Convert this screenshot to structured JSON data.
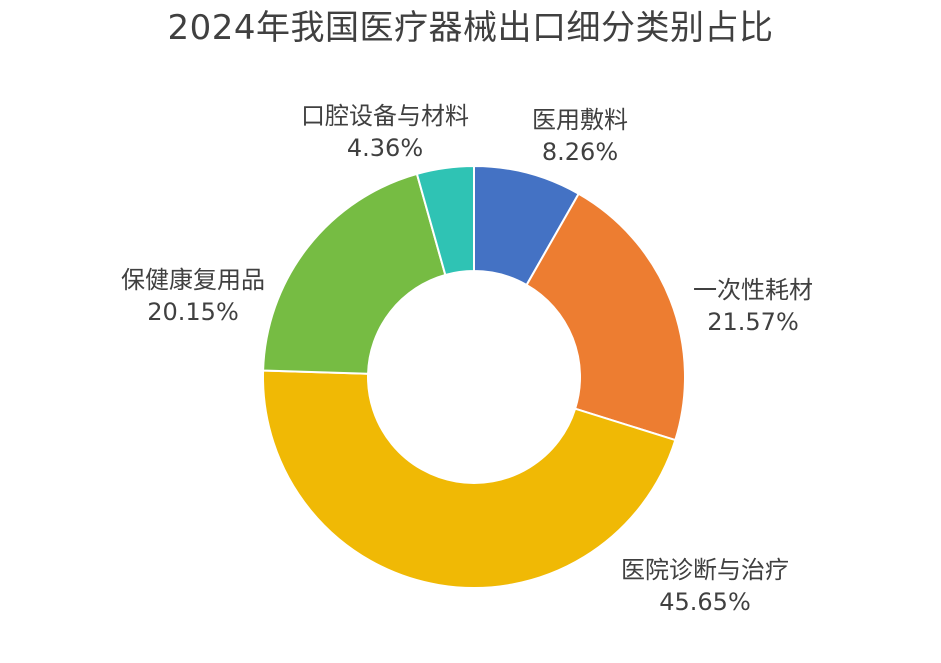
{
  "chart_data": {
    "type": "pie",
    "donut": true,
    "title": "2024年我国医疗器械出口细分类别占比",
    "categories": [
      "医用敷料",
      "一次性耗材",
      "医院诊断与治疗",
      "保健康复用品",
      "口腔设备与材料"
    ],
    "values": [
      8.26,
      21.57,
      45.65,
      20.15,
      4.36
    ],
    "value_labels": [
      "8.26%",
      "21.57%",
      "45.65%",
      "20.15%",
      "4.36%"
    ],
    "colors": [
      "#4472C4",
      "#ED7D31",
      "#F0B905",
      "#76BC43",
      "#2FC3B4"
    ],
    "unit": "%",
    "legend": "none"
  }
}
